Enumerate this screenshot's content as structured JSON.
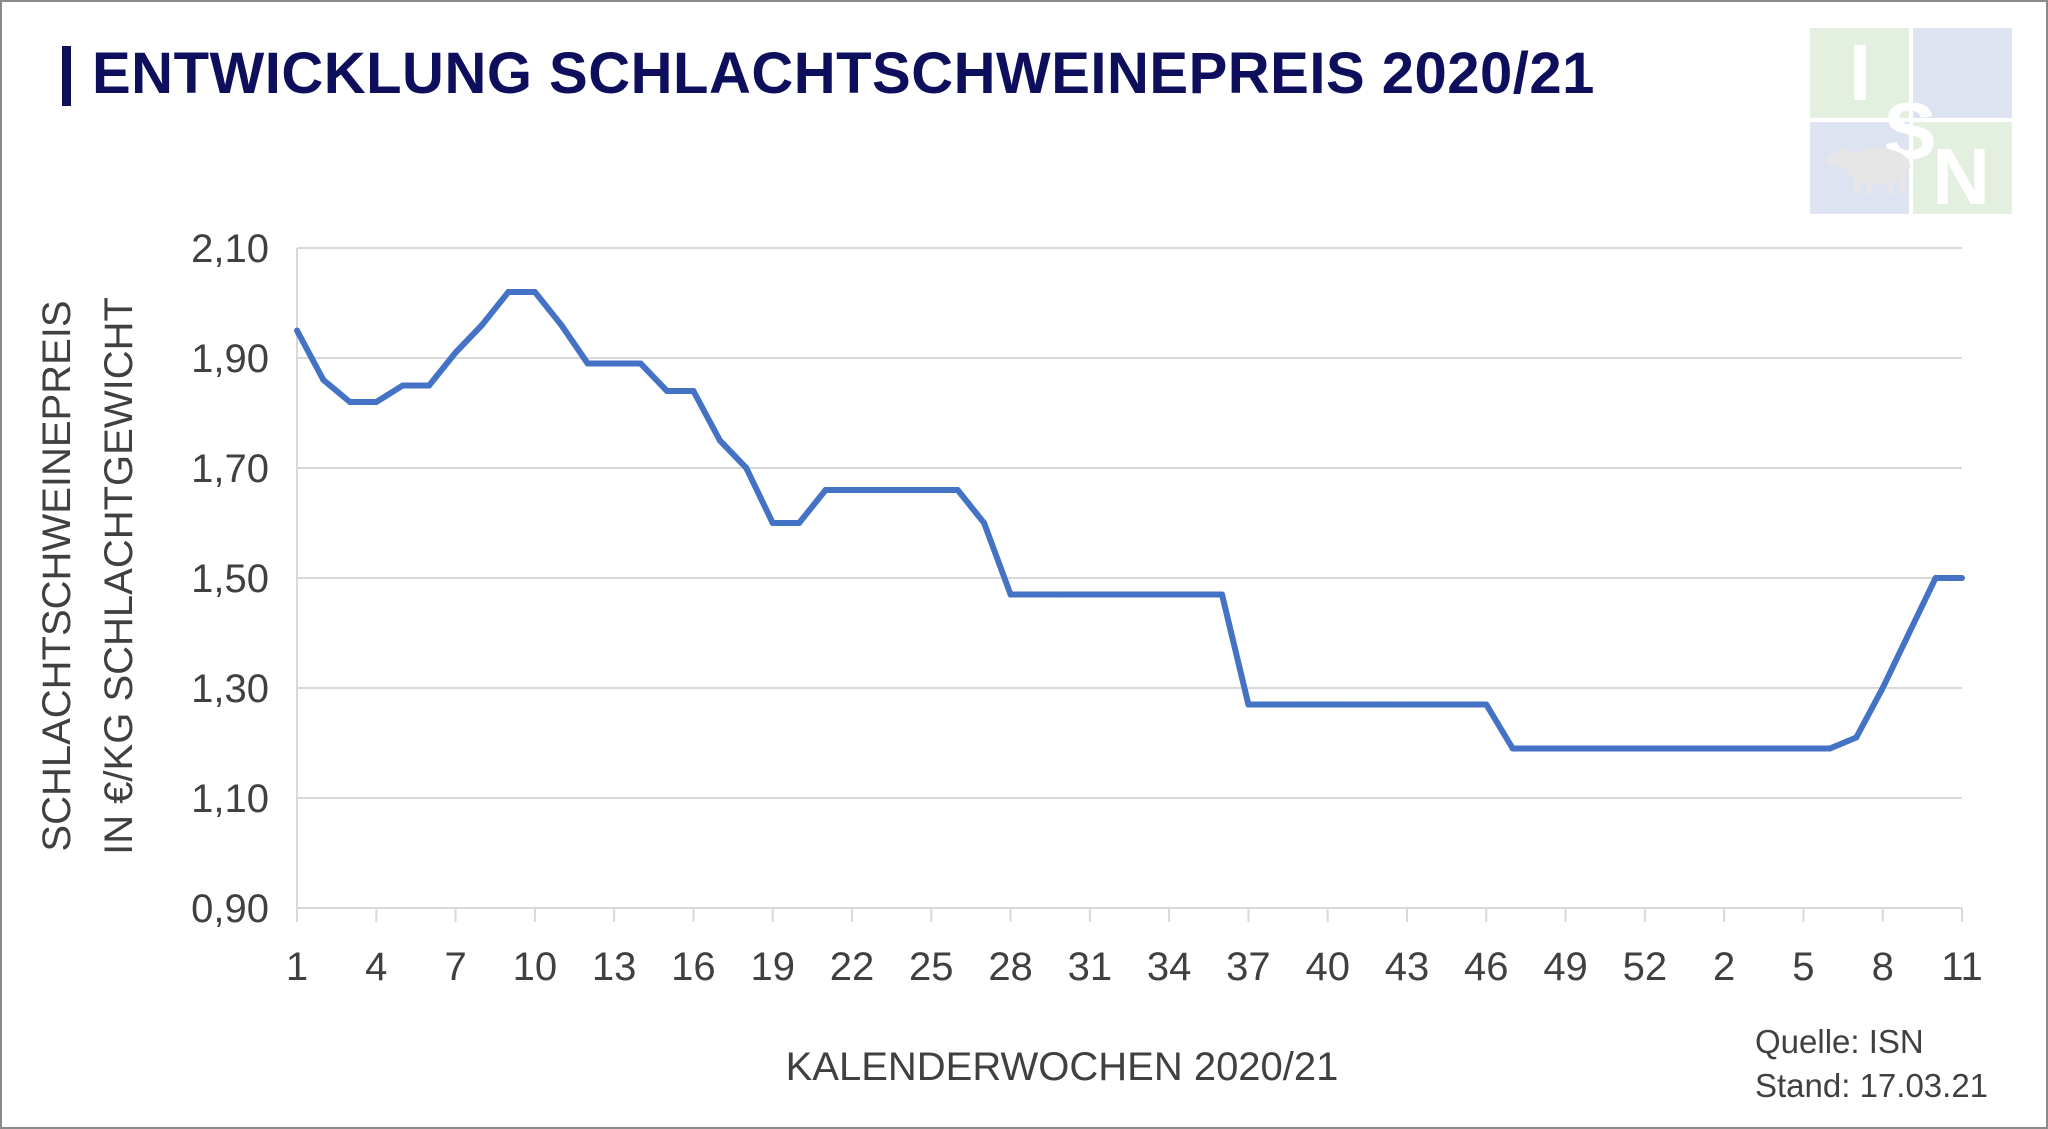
{
  "title": "ENTWICKLUNG SCHLACHTSCHWEINEPREIS 2020/21",
  "logo": {
    "letters": [
      "I",
      "S",
      "N"
    ],
    "icon": "pig-icon"
  },
  "source": {
    "quelle": "Quelle: ISN",
    "stand": "Stand: 17.03.21"
  },
  "colors": {
    "title": "#0d0f5c",
    "line": "#4472c4",
    "grid": "#d9d9d9",
    "axis": "#d9d9d9",
    "text": "#404040"
  },
  "chart_data": {
    "type": "line",
    "title": "ENTWICKLUNG SCHLACHTSCHWEINEPREIS 2020/21",
    "xlabel": "KALENDERWOCHEN 2020/21",
    "ylabel": [
      "SCHLACHTSCHWEINEPREIS",
      "IN €/KG SCHLACHTGEWICHT"
    ],
    "ylim": [
      0.9,
      2.1
    ],
    "yticks": [
      0.9,
      1.1,
      1.3,
      1.5,
      1.7,
      1.9,
      2.1
    ],
    "ytick_labels": [
      "0,90",
      "1,10",
      "1,30",
      "1,50",
      "1,70",
      "1,90",
      "2,10"
    ],
    "xtick_labels": [
      "1",
      "4",
      "7",
      "10",
      "13",
      "16",
      "19",
      "22",
      "25",
      "28",
      "31",
      "34",
      "37",
      "40",
      "43",
      "46",
      "49",
      "52",
      "2",
      "5",
      "8",
      "11"
    ],
    "grid": true,
    "categories": [
      "1",
      "2",
      "3",
      "4",
      "5",
      "6",
      "7",
      "8",
      "9",
      "10",
      "11",
      "12",
      "13",
      "14",
      "15",
      "16",
      "17",
      "18",
      "19",
      "20",
      "21",
      "22",
      "23",
      "24",
      "25",
      "26",
      "27",
      "28",
      "29",
      "30",
      "31",
      "32",
      "33",
      "34",
      "35",
      "36",
      "37",
      "38",
      "39",
      "40",
      "41",
      "42",
      "43",
      "44",
      "45",
      "46",
      "47",
      "48",
      "49",
      "50",
      "51",
      "52",
      "53",
      "1",
      "2",
      "3",
      "4",
      "5",
      "6",
      "7",
      "8",
      "9",
      "10",
      "11"
    ],
    "series": [
      {
        "values": [
          1.95,
          1.86,
          1.82,
          1.82,
          1.85,
          1.85,
          1.91,
          1.96,
          2.02,
          2.02,
          1.96,
          1.89,
          1.89,
          1.89,
          1.84,
          1.84,
          1.75,
          1.7,
          1.6,
          1.6,
          1.66,
          1.66,
          1.66,
          1.66,
          1.66,
          1.66,
          1.6,
          1.47,
          1.47,
          1.47,
          1.47,
          1.47,
          1.47,
          1.47,
          1.47,
          1.47,
          1.27,
          1.27,
          1.27,
          1.27,
          1.27,
          1.27,
          1.27,
          1.27,
          1.27,
          1.27,
          1.19,
          1.19,
          1.19,
          1.19,
          1.19,
          1.19,
          1.19,
          1.19,
          1.19,
          1.19,
          1.19,
          1.19,
          1.19,
          1.21,
          1.3,
          1.4,
          1.5,
          1.5
        ]
      }
    ]
  }
}
